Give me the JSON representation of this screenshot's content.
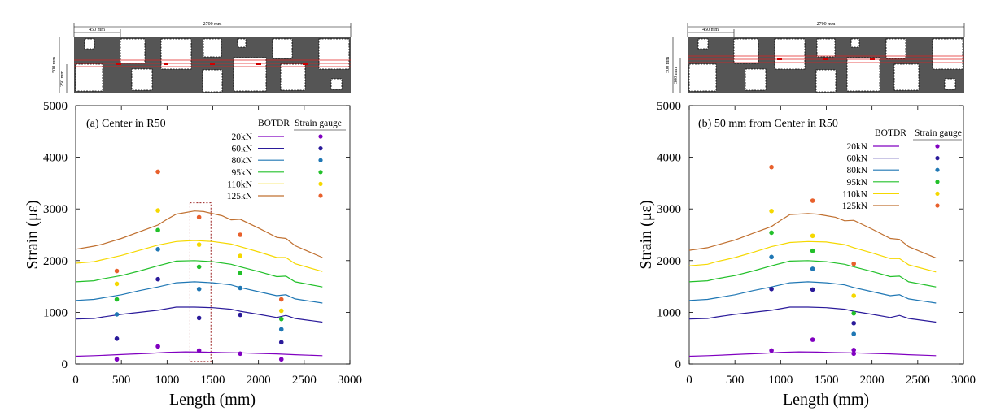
{
  "chart_data": [
    {
      "type": "line",
      "title": "(a) Center in R50",
      "xlabel": "Length (mm)",
      "ylabel": "Strain (με)",
      "xlim": [
        0,
        3000
      ],
      "ylim": [
        0,
        5000
      ],
      "xticks": [
        "0",
        "500",
        "1000",
        "1500",
        "2000",
        "2500",
        "3000"
      ],
      "yticks": [
        "0",
        "1000",
        "2000",
        "3000",
        "4000",
        "5000"
      ],
      "legend_headers": [
        "BOTDR",
        "Strain gauge"
      ],
      "highlight_region_x": [
        1250,
        1480
      ],
      "inset": {
        "total_label": "2700 mm",
        "offset_label": "450 mm",
        "height_label": "500 mm",
        "line_label": "250 mm"
      },
      "series": [
        {
          "name": "20kN",
          "color": "#8000c0",
          "x": [
            0,
            200,
            400,
            600,
            800,
            1000,
            1200,
            1400,
            1600,
            1800,
            2000,
            2200,
            2400,
            2700
          ],
          "y": [
            150,
            160,
            175,
            190,
            205,
            225,
            235,
            230,
            220,
            215,
            205,
            195,
            180,
            160
          ],
          "gauge_x": [
            450,
            900,
            1350,
            1800,
            2250
          ],
          "gauge_y": [
            90,
            340,
            260,
            200,
            90
          ]
        },
        {
          "name": "60kN",
          "color": "#2a1a9a",
          "x": [
            0,
            200,
            300,
            500,
            700,
            900,
            1100,
            1300,
            1500,
            1700,
            1800,
            2000,
            2200,
            2300,
            2400,
            2700
          ],
          "y": [
            870,
            880,
            910,
            960,
            1000,
            1040,
            1100,
            1100,
            1090,
            1060,
            1020,
            960,
            900,
            940,
            880,
            810
          ],
          "gauge_x": [
            450,
            900,
            1350,
            1800,
            2250
          ],
          "gauge_y": [
            490,
            1640,
            890,
            950,
            420
          ]
        },
        {
          "name": "80kN",
          "color": "#1f77b4",
          "x": [
            0,
            200,
            300,
            500,
            700,
            900,
            1100,
            1300,
            1500,
            1700,
            1800,
            2000,
            2200,
            2300,
            2400,
            2700
          ],
          "y": [
            1230,
            1250,
            1280,
            1340,
            1420,
            1490,
            1570,
            1590,
            1570,
            1530,
            1480,
            1400,
            1320,
            1340,
            1260,
            1180
          ],
          "gauge_x": [
            450,
            900,
            1350,
            1800,
            2250
          ],
          "gauge_y": [
            960,
            2220,
            1450,
            1470,
            670
          ]
        },
        {
          "name": "95kN",
          "color": "#22c02a",
          "x": [
            0,
            200,
            300,
            500,
            700,
            900,
            1100,
            1300,
            1500,
            1700,
            1800,
            2000,
            2200,
            2300,
            2400,
            2700
          ],
          "y": [
            1590,
            1610,
            1650,
            1710,
            1800,
            1900,
            1990,
            2000,
            1980,
            1930,
            1880,
            1790,
            1690,
            1700,
            1590,
            1490
          ],
          "gauge_x": [
            450,
            900,
            1350,
            1800,
            2250
          ],
          "gauge_y": [
            1250,
            2590,
            1880,
            1760,
            870
          ]
        },
        {
          "name": "110kN",
          "color": "#f5d800",
          "x": [
            0,
            200,
            300,
            500,
            700,
            900,
            1100,
            1300,
            1500,
            1700,
            1800,
            2000,
            2200,
            2300,
            2400,
            2700
          ],
          "y": [
            1950,
            1980,
            2020,
            2100,
            2200,
            2300,
            2370,
            2390,
            2370,
            2320,
            2270,
            2170,
            2060,
            2060,
            1940,
            1790
          ],
          "gauge_x": [
            450,
            900,
            1350,
            1800,
            2250
          ],
          "gauge_y": [
            1550,
            2970,
            2310,
            2090,
            1030
          ]
        },
        {
          "name": "125kN",
          "color": "#c07030",
          "x": [
            0,
            200,
            300,
            500,
            700,
            900,
            1000,
            1100,
            1300,
            1400,
            1600,
            1700,
            1800,
            2000,
            2200,
            2300,
            2400,
            2700
          ],
          "y": [
            2220,
            2280,
            2320,
            2430,
            2560,
            2690,
            2800,
            2900,
            2960,
            2950,
            2870,
            2790,
            2800,
            2630,
            2450,
            2430,
            2290,
            2060
          ],
          "gauge_x": [
            450,
            900,
            1350,
            1800,
            2250
          ],
          "gauge_y": [
            1800,
            3720,
            2840,
            2500,
            1250
          ],
          "gauge_color": "#e8602c"
        }
      ]
    },
    {
      "type": "line",
      "title": "(b) 50 mm from Center in R50",
      "xlabel": "Length (mm)",
      "ylabel": "Strain (με)",
      "xlim": [
        0,
        3000
      ],
      "ylim": [
        0,
        5000
      ],
      "xticks": [
        "0",
        "500",
        "1000",
        "1500",
        "2000",
        "2500",
        "3000"
      ],
      "yticks": [
        "0",
        "1000",
        "2000",
        "3000",
        "4000",
        "5000"
      ],
      "legend_headers": [
        "BOTDR",
        "Strain gauge"
      ],
      "inset": {
        "total_label": "2700 mm",
        "offset_label": "450 mm",
        "height_label": "500 mm",
        "line_label": "300 mm"
      },
      "series": [
        {
          "name": "20kN",
          "color": "#8000c0",
          "x": [
            0,
            200,
            400,
            600,
            800,
            1000,
            1200,
            1400,
            1600,
            1800,
            2000,
            2200,
            2400,
            2700
          ],
          "y": [
            150,
            160,
            175,
            190,
            205,
            225,
            235,
            230,
            220,
            215,
            205,
            195,
            180,
            160
          ],
          "gauge_x": [
            900,
            1350,
            1800,
            1800
          ],
          "gauge_y": [
            260,
            470,
            270,
            200
          ]
        },
        {
          "name": "60kN",
          "color": "#2a1a9a",
          "x": [
            0,
            200,
            300,
            500,
            700,
            900,
            1100,
            1300,
            1500,
            1700,
            1800,
            2000,
            2200,
            2300,
            2400,
            2700
          ],
          "y": [
            870,
            880,
            910,
            960,
            1000,
            1040,
            1100,
            1100,
            1090,
            1060,
            1020,
            960,
            900,
            940,
            880,
            810
          ],
          "gauge_x": [
            900,
            1350,
            1800
          ],
          "gauge_y": [
            1450,
            1440,
            790
          ]
        },
        {
          "name": "80kN",
          "color": "#1f77b4",
          "x": [
            0,
            200,
            300,
            500,
            700,
            900,
            1100,
            1300,
            1500,
            1700,
            1800,
            2000,
            2200,
            2300,
            2400,
            2700
          ],
          "y": [
            1230,
            1250,
            1280,
            1340,
            1420,
            1490,
            1570,
            1590,
            1570,
            1530,
            1480,
            1400,
            1320,
            1340,
            1260,
            1180
          ],
          "gauge_x": [
            900,
            1350,
            1800
          ],
          "gauge_y": [
            2070,
            1840,
            580
          ]
        },
        {
          "name": "95kN",
          "color": "#22c02a",
          "x": [
            0,
            200,
            300,
            500,
            700,
            900,
            1100,
            1300,
            1500,
            1700,
            1800,
            2000,
            2200,
            2300,
            2400,
            2700
          ],
          "y": [
            1590,
            1610,
            1650,
            1710,
            1800,
            1900,
            1990,
            2000,
            1980,
            1930,
            1880,
            1790,
            1690,
            1700,
            1590,
            1490
          ],
          "gauge_x": [
            900,
            1350,
            1800
          ],
          "gauge_y": [
            2540,
            2190,
            980
          ]
        },
        {
          "name": "110kN",
          "color": "#f5d800",
          "x": [
            0,
            200,
            300,
            500,
            700,
            900,
            1100,
            1300,
            1500,
            1700,
            1800,
            2000,
            2200,
            2300,
            2400,
            2700
          ],
          "y": [
            1900,
            1930,
            1980,
            2060,
            2160,
            2270,
            2350,
            2370,
            2360,
            2310,
            2250,
            2150,
            2040,
            2040,
            1920,
            1780
          ],
          "gauge_x": [
            900,
            1350,
            1800
          ],
          "gauge_y": [
            2960,
            2480,
            1320
          ]
        },
        {
          "name": "125kN",
          "color": "#c07030",
          "x": [
            0,
            200,
            300,
            500,
            700,
            900,
            1000,
            1100,
            1300,
            1400,
            1600,
            1700,
            1800,
            2000,
            2200,
            2300,
            2400,
            2700
          ],
          "y": [
            2200,
            2250,
            2300,
            2400,
            2530,
            2660,
            2780,
            2890,
            2910,
            2900,
            2840,
            2770,
            2780,
            2610,
            2430,
            2410,
            2270,
            2050
          ],
          "gauge_x": [
            900,
            1350,
            1800
          ],
          "gauge_y": [
            3810,
            3160,
            1940
          ],
          "gauge_color": "#e8602c"
        }
      ]
    }
  ]
}
